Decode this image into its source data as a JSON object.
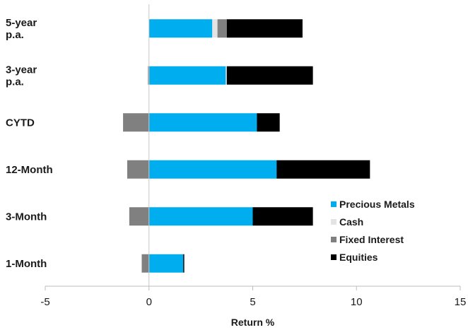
{
  "chart_data": {
    "type": "bar",
    "orientation": "horizontal",
    "stacked": true,
    "categories": [
      "5-year p.a.",
      "3-year p.a.",
      "CYTD",
      "12-Month",
      "3-Month",
      "1-Month"
    ],
    "category_lines": [
      [
        "5-year",
        "p.a."
      ],
      [
        "3-year",
        "p.a."
      ],
      [
        "CYTD"
      ],
      [
        "12-Month"
      ],
      [
        "3-Month"
      ],
      [
        "1-Month"
      ]
    ],
    "series": [
      {
        "name": "Precious Metals",
        "color": "#00aeef",
        "values": [
          3.05,
          3.7,
          5.2,
          6.15,
          5.0,
          1.65
        ]
      },
      {
        "name": "Cash",
        "color": "#e3e3e3",
        "values": [
          0.25,
          0.05,
          0.0,
          0.0,
          0.0,
          0.0
        ]
      },
      {
        "name": "Fixed Interest",
        "color": "#808080",
        "values": [
          0.45,
          -0.05,
          -1.25,
          -1.05,
          -0.95,
          -0.35
        ]
      },
      {
        "name": "Equities",
        "color": "#000000",
        "values": [
          3.65,
          4.15,
          1.1,
          4.5,
          2.9,
          0.05
        ]
      }
    ],
    "xlim": [
      -5,
      15
    ],
    "xticks": [
      -5,
      0,
      5,
      10,
      15
    ],
    "xtick_labels": [
      "-5",
      "0",
      "5",
      "10",
      "15"
    ],
    "xlabel": "Return %",
    "ylabel": "",
    "title": "",
    "grid": false,
    "legend_position": "right"
  }
}
